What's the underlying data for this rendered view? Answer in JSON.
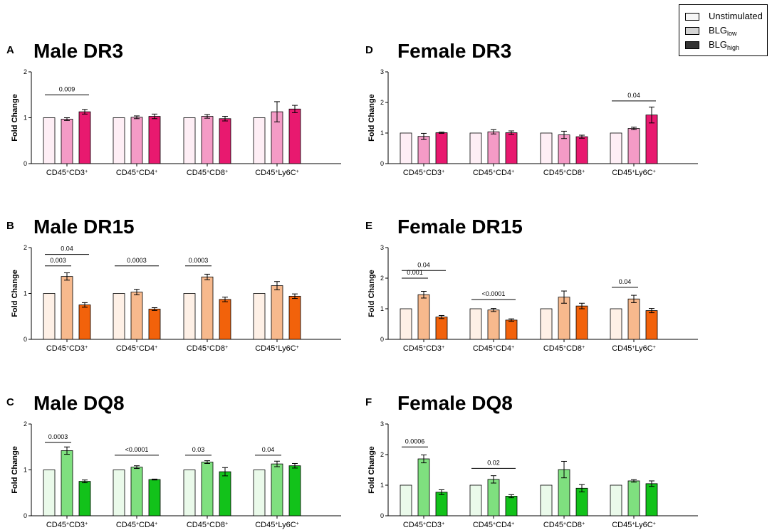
{
  "legend": {
    "unstimulated": "Unstimulated",
    "low_base": "BLG",
    "low_sub": "low",
    "high_base": "BLG",
    "high_sub": "high"
  },
  "colors": {
    "DR3": {
      "light": "#f49bc6",
      "dark": "#e8196f",
      "tint": "#fde3ef"
    },
    "DR15": {
      "light": "#f7b98d",
      "dark": "#f2620b",
      "tint": "#fde6d6"
    },
    "DQ8": {
      "light": "#7fe07f",
      "dark": "#12c21a",
      "tint": "#dcf6dc"
    }
  },
  "chart_data": [
    {
      "type": "bar",
      "panel": "A",
      "title": "Male  DR3",
      "ylabel": "Fold Change",
      "ylim": [
        0,
        2
      ],
      "yticks": [
        "0",
        "1",
        "2"
      ],
      "color_key": "DR3",
      "categories": [
        "CD45⁺CD3⁺",
        "CD45⁺CD4⁺",
        "CD45⁺CD8⁺",
        "CD45⁺Ly6C⁺"
      ],
      "series": [
        {
          "name": "Unstimulated",
          "values": [
            1,
            1,
            1,
            1
          ],
          "errors": [
            0,
            0,
            0,
            0
          ]
        },
        {
          "name": "BLGlow",
          "values": [
            0.97,
            1.01,
            1.03,
            1.13
          ],
          "errors": [
            0.03,
            0.03,
            0.04,
            0.22
          ]
        },
        {
          "name": "BLGhigh",
          "values": [
            1.13,
            1.03,
            0.98,
            1.19
          ],
          "errors": [
            0.05,
            0.05,
            0.05,
            0.08
          ]
        }
      ],
      "annotations": [
        {
          "text": "0.009",
          "group": 0,
          "span": [
            0,
            2
          ],
          "level": 1.5
        }
      ]
    },
    {
      "type": "bar",
      "panel": "B",
      "title": "Male DR15",
      "ylabel": "Fold Change",
      "ylim": [
        0,
        2
      ],
      "yticks": [
        "0",
        "1",
        "2"
      ],
      "color_key": "DR15",
      "categories": [
        "CD45⁺CD3⁺",
        "CD45⁺CD4⁺",
        "CD45⁺CD8⁺",
        "CD45⁺Ly6C⁺"
      ],
      "series": [
        {
          "name": "Unstimulated",
          "values": [
            1,
            1,
            1,
            1
          ],
          "errors": [
            0,
            0,
            0,
            0
          ]
        },
        {
          "name": "BLGlow",
          "values": [
            1.37,
            1.03,
            1.36,
            1.17
          ],
          "errors": [
            0.08,
            0.06,
            0.06,
            0.09
          ]
        },
        {
          "name": "BLGhigh",
          "values": [
            0.75,
            0.66,
            0.87,
            0.94
          ],
          "errors": [
            0.05,
            0.03,
            0.05,
            0.05
          ]
        }
      ],
      "annotations": [
        {
          "text": "0.003",
          "group": 0,
          "span": [
            0,
            1
          ],
          "level": 1.6
        },
        {
          "text": "0.04",
          "group": 0,
          "span": [
            0,
            2
          ],
          "level": 1.85
        },
        {
          "text": "0.0003",
          "group": 1,
          "span": [
            0,
            2
          ],
          "level": 1.6
        },
        {
          "text": "0.0003",
          "group": 2,
          "span": [
            0,
            1
          ],
          "level": 1.6
        }
      ]
    },
    {
      "type": "bar",
      "panel": "C",
      "title": "Male DQ8",
      "ylabel": "Fold Change",
      "ylim": [
        0,
        2
      ],
      "yticks": [
        "0",
        "1",
        "2"
      ],
      "color_key": "DQ8",
      "categories": [
        "CD45⁺CD3⁺",
        "CD45⁺CD4⁺",
        "CD45⁺CD8⁺",
        "CD45⁺Ly6C⁺"
      ],
      "series": [
        {
          "name": "Unstimulated",
          "values": [
            1,
            1,
            1,
            1
          ],
          "errors": [
            0,
            0,
            0,
            0
          ]
        },
        {
          "name": "BLGlow",
          "values": [
            1.42,
            1.06,
            1.17,
            1.13
          ],
          "errors": [
            0.08,
            0.03,
            0.03,
            0.06
          ]
        },
        {
          "name": "BLGhigh",
          "values": [
            0.75,
            0.79,
            0.96,
            1.09
          ],
          "errors": [
            0.03,
            0.01,
            0.09,
            0.05
          ]
        }
      ],
      "annotations": [
        {
          "text": "0.0003",
          "group": 0,
          "span": [
            0,
            1
          ],
          "level": 1.6
        },
        {
          "text": "<0.0001",
          "group": 1,
          "span": [
            0,
            2
          ],
          "level": 1.32
        },
        {
          "text": "0.03",
          "group": 2,
          "span": [
            0,
            1
          ],
          "level": 1.32
        },
        {
          "text": "0.04",
          "group": 3,
          "span": [
            0,
            1
          ],
          "level": 1.32
        }
      ]
    },
    {
      "type": "bar",
      "panel": "D",
      "title": "Female  DR3",
      "ylabel": "Fold Change",
      "ylim": [
        0,
        3
      ],
      "yticks": [
        "0",
        "1",
        "2",
        "3"
      ],
      "color_key": "DR3",
      "categories": [
        "CD45⁺CD3⁺",
        "CD45⁺CD4⁺",
        "CD45⁺CD8⁺",
        "CD45⁺Ly6C⁺"
      ],
      "series": [
        {
          "name": "Unstimulated",
          "values": [
            1,
            1,
            1,
            1
          ],
          "errors": [
            0,
            0,
            0,
            0
          ]
        },
        {
          "name": "BLGlow",
          "values": [
            0.89,
            1.04,
            0.94,
            1.15
          ],
          "errors": [
            0.1,
            0.07,
            0.12,
            0.04
          ]
        },
        {
          "name": "BLGhigh",
          "values": [
            1.01,
            1.01,
            0.88,
            1.59
          ],
          "errors": [
            0.02,
            0.06,
            0.05,
            0.26
          ]
        }
      ],
      "annotations": [
        {
          "text": "0.04",
          "group": 3,
          "span": [
            0,
            2
          ],
          "level": 2.05
        }
      ]
    },
    {
      "type": "bar",
      "panel": "E",
      "title": "Female DR15",
      "ylabel": "Fold Change",
      "ylim": [
        0,
        3
      ],
      "yticks": [
        "0",
        "1",
        "2",
        "3"
      ],
      "color_key": "DR15",
      "categories": [
        "CD45⁺CD3⁺",
        "CD45⁺CD4⁺",
        "CD45⁺CD8⁺",
        "CD45⁺Ly6C⁺"
      ],
      "series": [
        {
          "name": "Unstimulated",
          "values": [
            1,
            1,
            1,
            1
          ],
          "errors": [
            0,
            0,
            0,
            0
          ]
        },
        {
          "name": "BLGlow",
          "values": [
            1.46,
            0.96,
            1.38,
            1.32
          ],
          "errors": [
            0.11,
            0.05,
            0.2,
            0.12
          ]
        },
        {
          "name": "BLGhigh",
          "values": [
            0.73,
            0.63,
            1.09,
            0.94
          ],
          "errors": [
            0.05,
            0.04,
            0.09,
            0.07
          ]
        }
      ],
      "annotations": [
        {
          "text": "0.001",
          "group": 0,
          "span": [
            0,
            1
          ],
          "level": 2.0
        },
        {
          "text": "0.04",
          "group": 0,
          "span": [
            0,
            2
          ],
          "level": 2.25
        },
        {
          "text": "<0.0001",
          "group": 1,
          "span": [
            0,
            2
          ],
          "level": 1.3
        },
        {
          "text": "0.04",
          "group": 3,
          "span": [
            0,
            1
          ],
          "level": 1.7
        }
      ]
    },
    {
      "type": "bar",
      "panel": "F",
      "title": "Female DQ8",
      "ylabel": "Fold Change",
      "ylim": [
        0,
        3
      ],
      "yticks": [
        "0",
        "1",
        "2",
        "3"
      ],
      "color_key": "DQ8",
      "categories": [
        "CD45⁺CD3⁺",
        "CD45⁺CD4⁺",
        "CD45⁺CD8⁺",
        "CD45⁺Ly6C⁺"
      ],
      "series": [
        {
          "name": "Unstimulated",
          "values": [
            1,
            1,
            1,
            1
          ],
          "errors": [
            0,
            0,
            0,
            0
          ]
        },
        {
          "name": "BLGlow",
          "values": [
            1.86,
            1.19,
            1.51,
            1.14
          ],
          "errors": [
            0.13,
            0.12,
            0.27,
            0.04
          ]
        },
        {
          "name": "BLGhigh",
          "values": [
            0.77,
            0.64,
            0.9,
            1.05
          ],
          "errors": [
            0.08,
            0.05,
            0.12,
            0.09
          ]
        }
      ],
      "annotations": [
        {
          "text": "0.0006",
          "group": 0,
          "span": [
            0,
            1
          ],
          "level": 2.25
        },
        {
          "text": "0.02",
          "group": 1,
          "span": [
            0,
            2
          ],
          "level": 1.55
        }
      ]
    }
  ]
}
